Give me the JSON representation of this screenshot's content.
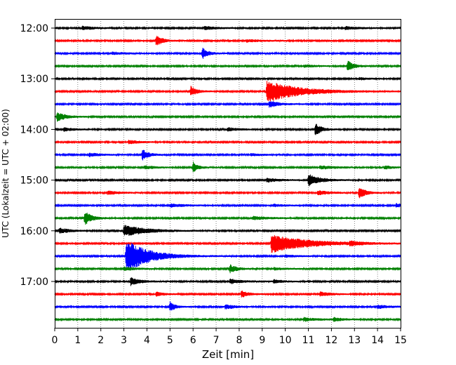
{
  "chart_data": {
    "type": "line",
    "subtype": "helicorder-seismogram",
    "title": "",
    "xlabel": "Zeit  [min]",
    "ylabel": "UTC (Lokalzeit = UTC + 02:00)",
    "xlim": [
      0,
      15
    ],
    "x_ticks": [
      "0",
      "1",
      "2",
      "3",
      "4",
      "5",
      "6",
      "7",
      "8",
      "9",
      "10",
      "11",
      "12",
      "13",
      "14",
      "15"
    ],
    "y_tick_labels": [
      "12:00",
      "13:00",
      "14:00",
      "15:00",
      "16:00",
      "17:00"
    ],
    "x_grid": "dotted vertical at each minute",
    "trace_interval_minutes": 15,
    "color_cycle": [
      "#000000",
      "#ff0000",
      "#0000ff",
      "#008000"
    ],
    "traces": [
      {
        "start": "12:00",
        "color": "#000000",
        "events": [
          {
            "t": 1.2,
            "amp": 0.3,
            "dur": 0.5
          },
          {
            "t": 6.5,
            "amp": 0.3,
            "dur": 0.5
          },
          {
            "t": 12.6,
            "amp": 0.25,
            "dur": 0.6
          }
        ]
      },
      {
        "start": "12:15",
        "color": "#ff0000",
        "events": [
          {
            "t": 4.4,
            "amp": 1.0,
            "dur": 0.25
          },
          {
            "t": 8.3,
            "amp": 0.2,
            "dur": 0.7
          }
        ]
      },
      {
        "start": "12:30",
        "color": "#0000ff",
        "events": [
          {
            "t": 6.4,
            "amp": 0.95,
            "dur": 0.25
          },
          {
            "t": 2.5,
            "amp": 0.2,
            "dur": 0.6
          }
        ]
      },
      {
        "start": "12:45",
        "color": "#008000",
        "events": [
          {
            "t": 12.7,
            "amp": 1.0,
            "dur": 0.25
          },
          {
            "t": 10.8,
            "amp": 0.2,
            "dur": 0.5
          }
        ]
      },
      {
        "start": "13:00",
        "color": "#000000",
        "events": [
          {
            "t": 13.2,
            "amp": 0.2,
            "dur": 0.4
          }
        ]
      },
      {
        "start": "13:15",
        "color": "#ff0000",
        "events": [
          {
            "t": 5.9,
            "amp": 0.9,
            "dur": 0.25
          },
          {
            "t": 9.2,
            "amp": 1.95,
            "dur": 1.3
          }
        ]
      },
      {
        "start": "13:30",
        "color": "#0000ff",
        "events": [
          {
            "t": 9.3,
            "amp": 0.6,
            "dur": 0.4
          }
        ]
      },
      {
        "start": "13:45",
        "color": "#008000",
        "events": [
          {
            "t": 0.1,
            "amp": 0.8,
            "dur": 0.35
          }
        ]
      },
      {
        "start": "14:00",
        "color": "#000000",
        "events": [
          {
            "t": 11.3,
            "amp": 1.1,
            "dur": 0.25
          },
          {
            "t": 0.4,
            "amp": 0.3,
            "dur": 0.4
          },
          {
            "t": 7.5,
            "amp": 0.3,
            "dur": 0.5
          }
        ]
      },
      {
        "start": "14:15",
        "color": "#ff0000",
        "events": [
          {
            "t": 3.2,
            "amp": 0.3,
            "dur": 0.5
          }
        ]
      },
      {
        "start": "14:30",
        "color": "#0000ff",
        "events": [
          {
            "t": 3.8,
            "amp": 1.0,
            "dur": 0.25
          },
          {
            "t": 1.5,
            "amp": 0.3,
            "dur": 0.5
          },
          {
            "t": 8.5,
            "amp": 0.2,
            "dur": 0.5
          }
        ]
      },
      {
        "start": "14:45",
        "color": "#008000",
        "events": [
          {
            "t": 6.0,
            "amp": 1.0,
            "dur": 0.2
          },
          {
            "t": 3.9,
            "amp": 0.3,
            "dur": 0.4
          },
          {
            "t": 11.5,
            "amp": 0.25,
            "dur": 0.8
          },
          {
            "t": 14.3,
            "amp": 0.3,
            "dur": 0.3
          }
        ]
      },
      {
        "start": "15:00",
        "color": "#000000",
        "events": [
          {
            "t": 11.0,
            "amp": 1.1,
            "dur": 0.45
          },
          {
            "t": 9.2,
            "amp": 0.35,
            "dur": 0.5
          }
        ]
      },
      {
        "start": "15:15",
        "color": "#ff0000",
        "events": [
          {
            "t": 13.2,
            "amp": 1.1,
            "dur": 0.25
          },
          {
            "t": 11.4,
            "amp": 0.4,
            "dur": 0.5
          },
          {
            "t": 2.3,
            "amp": 0.3,
            "dur": 0.5
          }
        ]
      },
      {
        "start": "15:30",
        "color": "#0000ff",
        "events": [
          {
            "t": 5.0,
            "amp": 0.3,
            "dur": 0.6
          },
          {
            "t": 14.8,
            "amp": 0.35,
            "dur": 0.3
          },
          {
            "t": 9.5,
            "amp": 0.2,
            "dur": 0.5
          }
        ]
      },
      {
        "start": "15:45",
        "color": "#008000",
        "events": [
          {
            "t": 1.3,
            "amp": 1.2,
            "dur": 0.3
          },
          {
            "t": 8.6,
            "amp": 0.3,
            "dur": 0.6
          }
        ]
      },
      {
        "start": "16:00",
        "color": "#000000",
        "events": [
          {
            "t": 3.0,
            "amp": 1.0,
            "dur": 0.9
          },
          {
            "t": 0.2,
            "amp": 0.5,
            "dur": 0.4
          }
        ]
      },
      {
        "start": "16:15",
        "color": "#ff0000",
        "events": [
          {
            "t": 9.4,
            "amp": 1.6,
            "dur": 1.5
          },
          {
            "t": 12.8,
            "amp": 0.3,
            "dur": 0.4
          }
        ]
      },
      {
        "start": "16:30",
        "color": "#0000ff",
        "events": [
          {
            "t": 3.1,
            "amp": 3.0,
            "dur": 0.9
          },
          {
            "t": 10.0,
            "amp": 0.2,
            "dur": 0.5
          }
        ]
      },
      {
        "start": "16:45",
        "color": "#008000",
        "events": [
          {
            "t": 7.6,
            "amp": 0.7,
            "dur": 0.3
          },
          {
            "t": 3.0,
            "amp": 0.3,
            "dur": 0.5
          },
          {
            "t": 9.5,
            "amp": 0.2,
            "dur": 0.5
          }
        ]
      },
      {
        "start": "17:00",
        "color": "#000000",
        "events": [
          {
            "t": 3.3,
            "amp": 0.7,
            "dur": 0.4
          },
          {
            "t": 7.6,
            "amp": 0.4,
            "dur": 0.5
          },
          {
            "t": 9.5,
            "amp": 0.3,
            "dur": 0.4
          }
        ]
      },
      {
        "start": "17:15",
        "color": "#ff0000",
        "events": [
          {
            "t": 8.1,
            "amp": 0.6,
            "dur": 0.3
          },
          {
            "t": 4.4,
            "amp": 0.4,
            "dur": 0.3
          },
          {
            "t": 11.5,
            "amp": 0.4,
            "dur": 0.4
          }
        ]
      },
      {
        "start": "17:30",
        "color": "#0000ff",
        "events": [
          {
            "t": 5.0,
            "amp": 0.9,
            "dur": 0.2
          },
          {
            "t": 7.4,
            "amp": 0.4,
            "dur": 0.4
          },
          {
            "t": 14.0,
            "amp": 0.3,
            "dur": 0.5
          }
        ]
      },
      {
        "start": "17:45",
        "color": "#008000",
        "events": [
          {
            "t": 10.8,
            "amp": 0.3,
            "dur": 0.6
          },
          {
            "t": 12.1,
            "amp": 0.3,
            "dur": 0.4
          }
        ]
      }
    ]
  }
}
